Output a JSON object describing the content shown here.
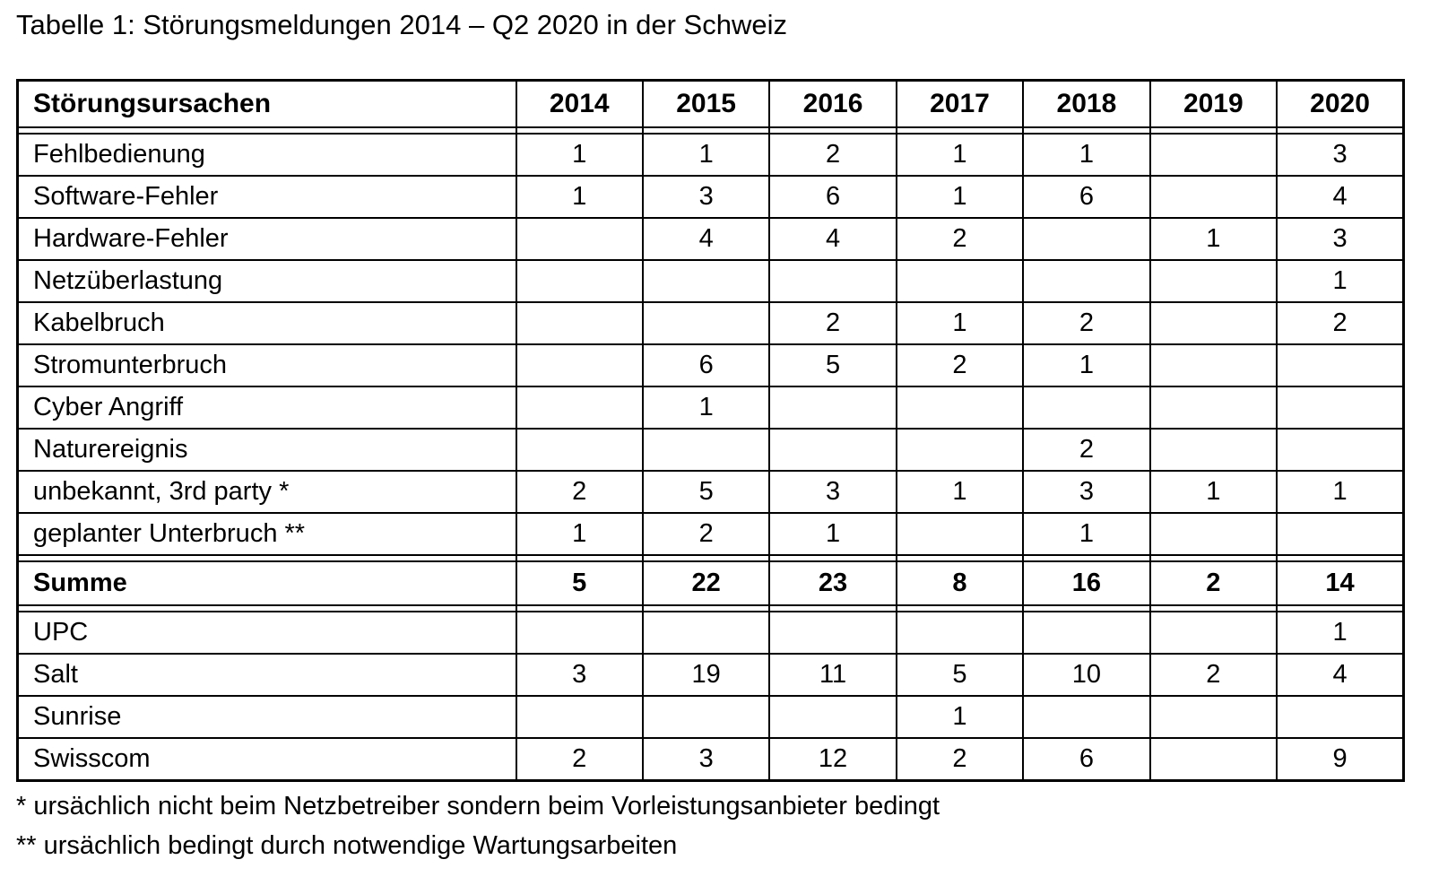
{
  "title": "Tabelle 1: Störungsmeldungen 2014 – Q2 2020 in der Schweiz",
  "colors": {
    "text": "#000000",
    "border": "#000000",
    "background": "#ffffff"
  },
  "table": {
    "header": [
      "Störungsursachen",
      "2014",
      "2015",
      "2016",
      "2017",
      "2018",
      "2019",
      "2020"
    ],
    "sections": [
      {
        "name": "causes",
        "rows": [
          {
            "label": "Fehlbedienung",
            "bold": false,
            "values": [
              "1",
              "1",
              "2",
              "1",
              "1",
              "",
              "3"
            ]
          },
          {
            "label": "Software-Fehler",
            "bold": false,
            "values": [
              "1",
              "3",
              "6",
              "1",
              "6",
              "",
              "4"
            ]
          },
          {
            "label": "Hardware-Fehler",
            "bold": false,
            "values": [
              "",
              "4",
              "4",
              "2",
              "",
              "1",
              "3"
            ]
          },
          {
            "label": "Netzüberlastung",
            "bold": false,
            "values": [
              "",
              "",
              "",
              "",
              "",
              "",
              "1"
            ]
          },
          {
            "label": "Kabelbruch",
            "bold": false,
            "values": [
              "",
              "",
              "2",
              "1",
              "2",
              "",
              "2"
            ]
          },
          {
            "label": "Stromunterbruch",
            "bold": false,
            "values": [
              "",
              "6",
              "5",
              "2",
              "1",
              "",
              ""
            ]
          },
          {
            "label": "Cyber Angriff",
            "bold": false,
            "values": [
              "",
              "1",
              "",
              "",
              "",
              "",
              ""
            ]
          },
          {
            "label": "Naturereignis",
            "bold": false,
            "values": [
              "",
              "",
              "",
              "",
              "2",
              "",
              ""
            ]
          },
          {
            "label": "unbekannt, 3rd party *",
            "bold": false,
            "values": [
              "2",
              "5",
              "3",
              "1",
              "3",
              "1",
              "1"
            ]
          },
          {
            "label": "geplanter Unterbruch **",
            "bold": false,
            "values": [
              "1",
              "2",
              "1",
              "",
              "1",
              "",
              ""
            ]
          }
        ]
      },
      {
        "name": "total",
        "rows": [
          {
            "label": "Summe",
            "bold": true,
            "values": [
              "5",
              "22",
              "23",
              "8",
              "16",
              "2",
              "14"
            ]
          }
        ]
      },
      {
        "name": "operators",
        "rows": [
          {
            "label": "UPC",
            "bold": false,
            "values": [
              "",
              "",
              "",
              "",
              "",
              "",
              "1"
            ]
          },
          {
            "label": "Salt",
            "bold": false,
            "values": [
              "3",
              "19",
              "11",
              "5",
              "10",
              "2",
              "4"
            ]
          },
          {
            "label": "Sunrise",
            "bold": false,
            "values": [
              "",
              "",
              "",
              "1",
              "",
              "",
              ""
            ]
          },
          {
            "label": "Swisscom",
            "bold": false,
            "values": [
              "2",
              "3",
              "12",
              "2",
              "6",
              "",
              "9"
            ]
          }
        ]
      }
    ]
  },
  "footnotes": [
    "* ursächlich nicht beim Netzbetreiber sondern beim Vorleistungsanbieter bedingt",
    "** ursächlich bedingt durch notwendige Wartungsarbeiten"
  ]
}
